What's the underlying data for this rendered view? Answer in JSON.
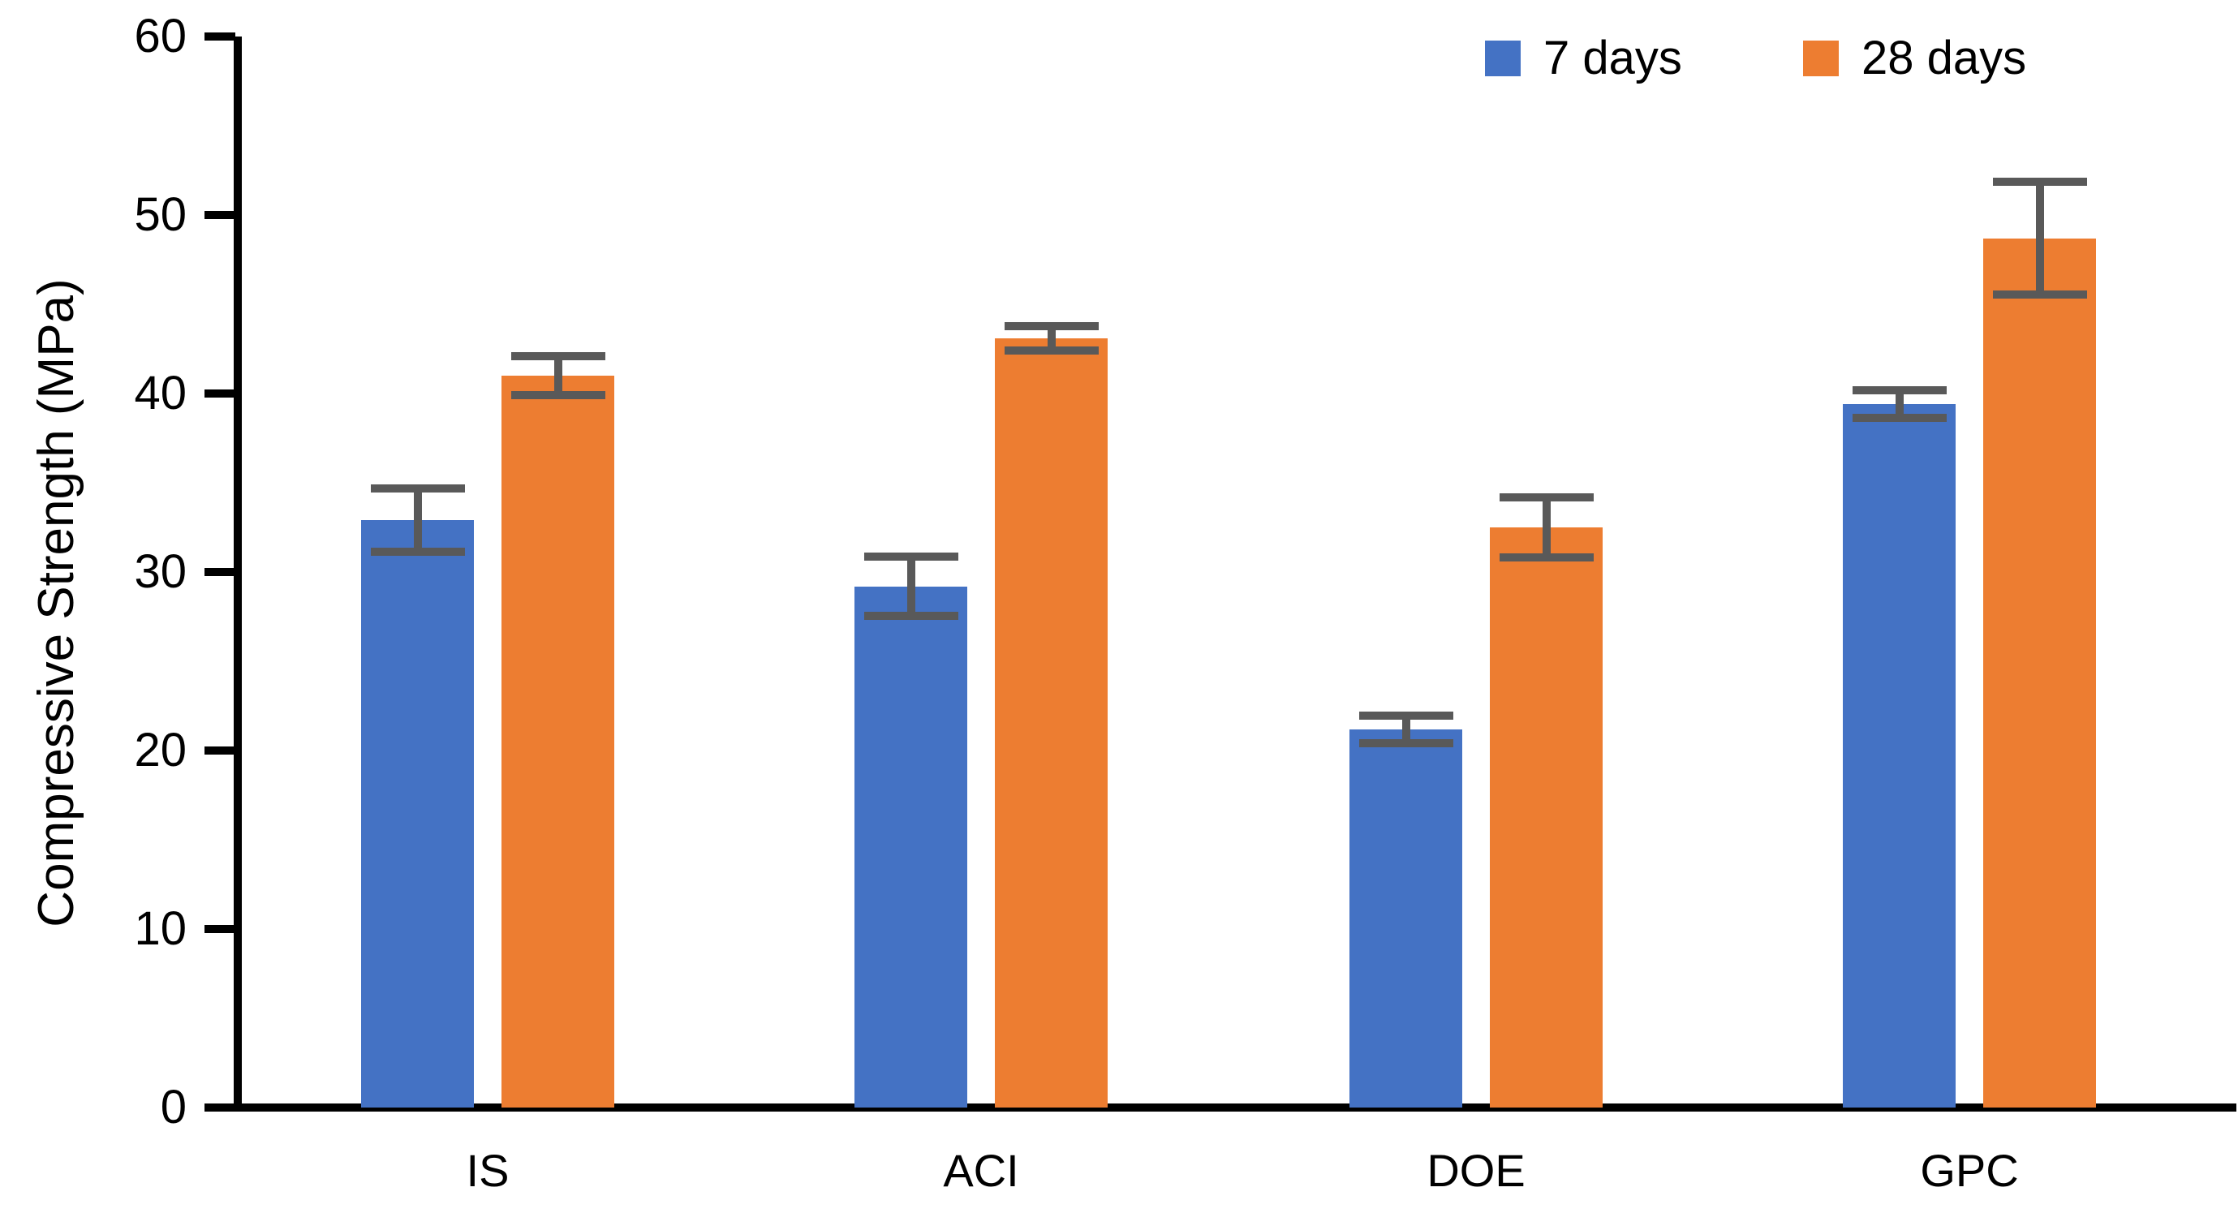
{
  "chart_data": {
    "type": "bar",
    "title": "",
    "xlabel": "",
    "ylabel": "Compressive Strength (MPa)",
    "ylim": [
      0,
      60
    ],
    "yticks": [
      0,
      10,
      20,
      30,
      40,
      50,
      60
    ],
    "grid": false,
    "legend_position": "top-right",
    "categories": [
      "IS",
      "ACI",
      "DOE",
      "GPC"
    ],
    "series": [
      {
        "name": "7 days",
        "color": "#4472C4",
        "values": [
          32.9,
          29.2,
          21.2,
          39.4
        ],
        "errors": [
          2.0,
          1.9,
          1.0,
          1.0
        ]
      },
      {
        "name": "28 days",
        "color": "#ED7D31",
        "values": [
          41.0,
          43.1,
          32.5,
          48.7
        ],
        "errors": [
          1.3,
          0.9,
          1.9,
          3.4
        ]
      }
    ],
    "error_bar_color": "#595959",
    "axis_color": "#000000"
  }
}
